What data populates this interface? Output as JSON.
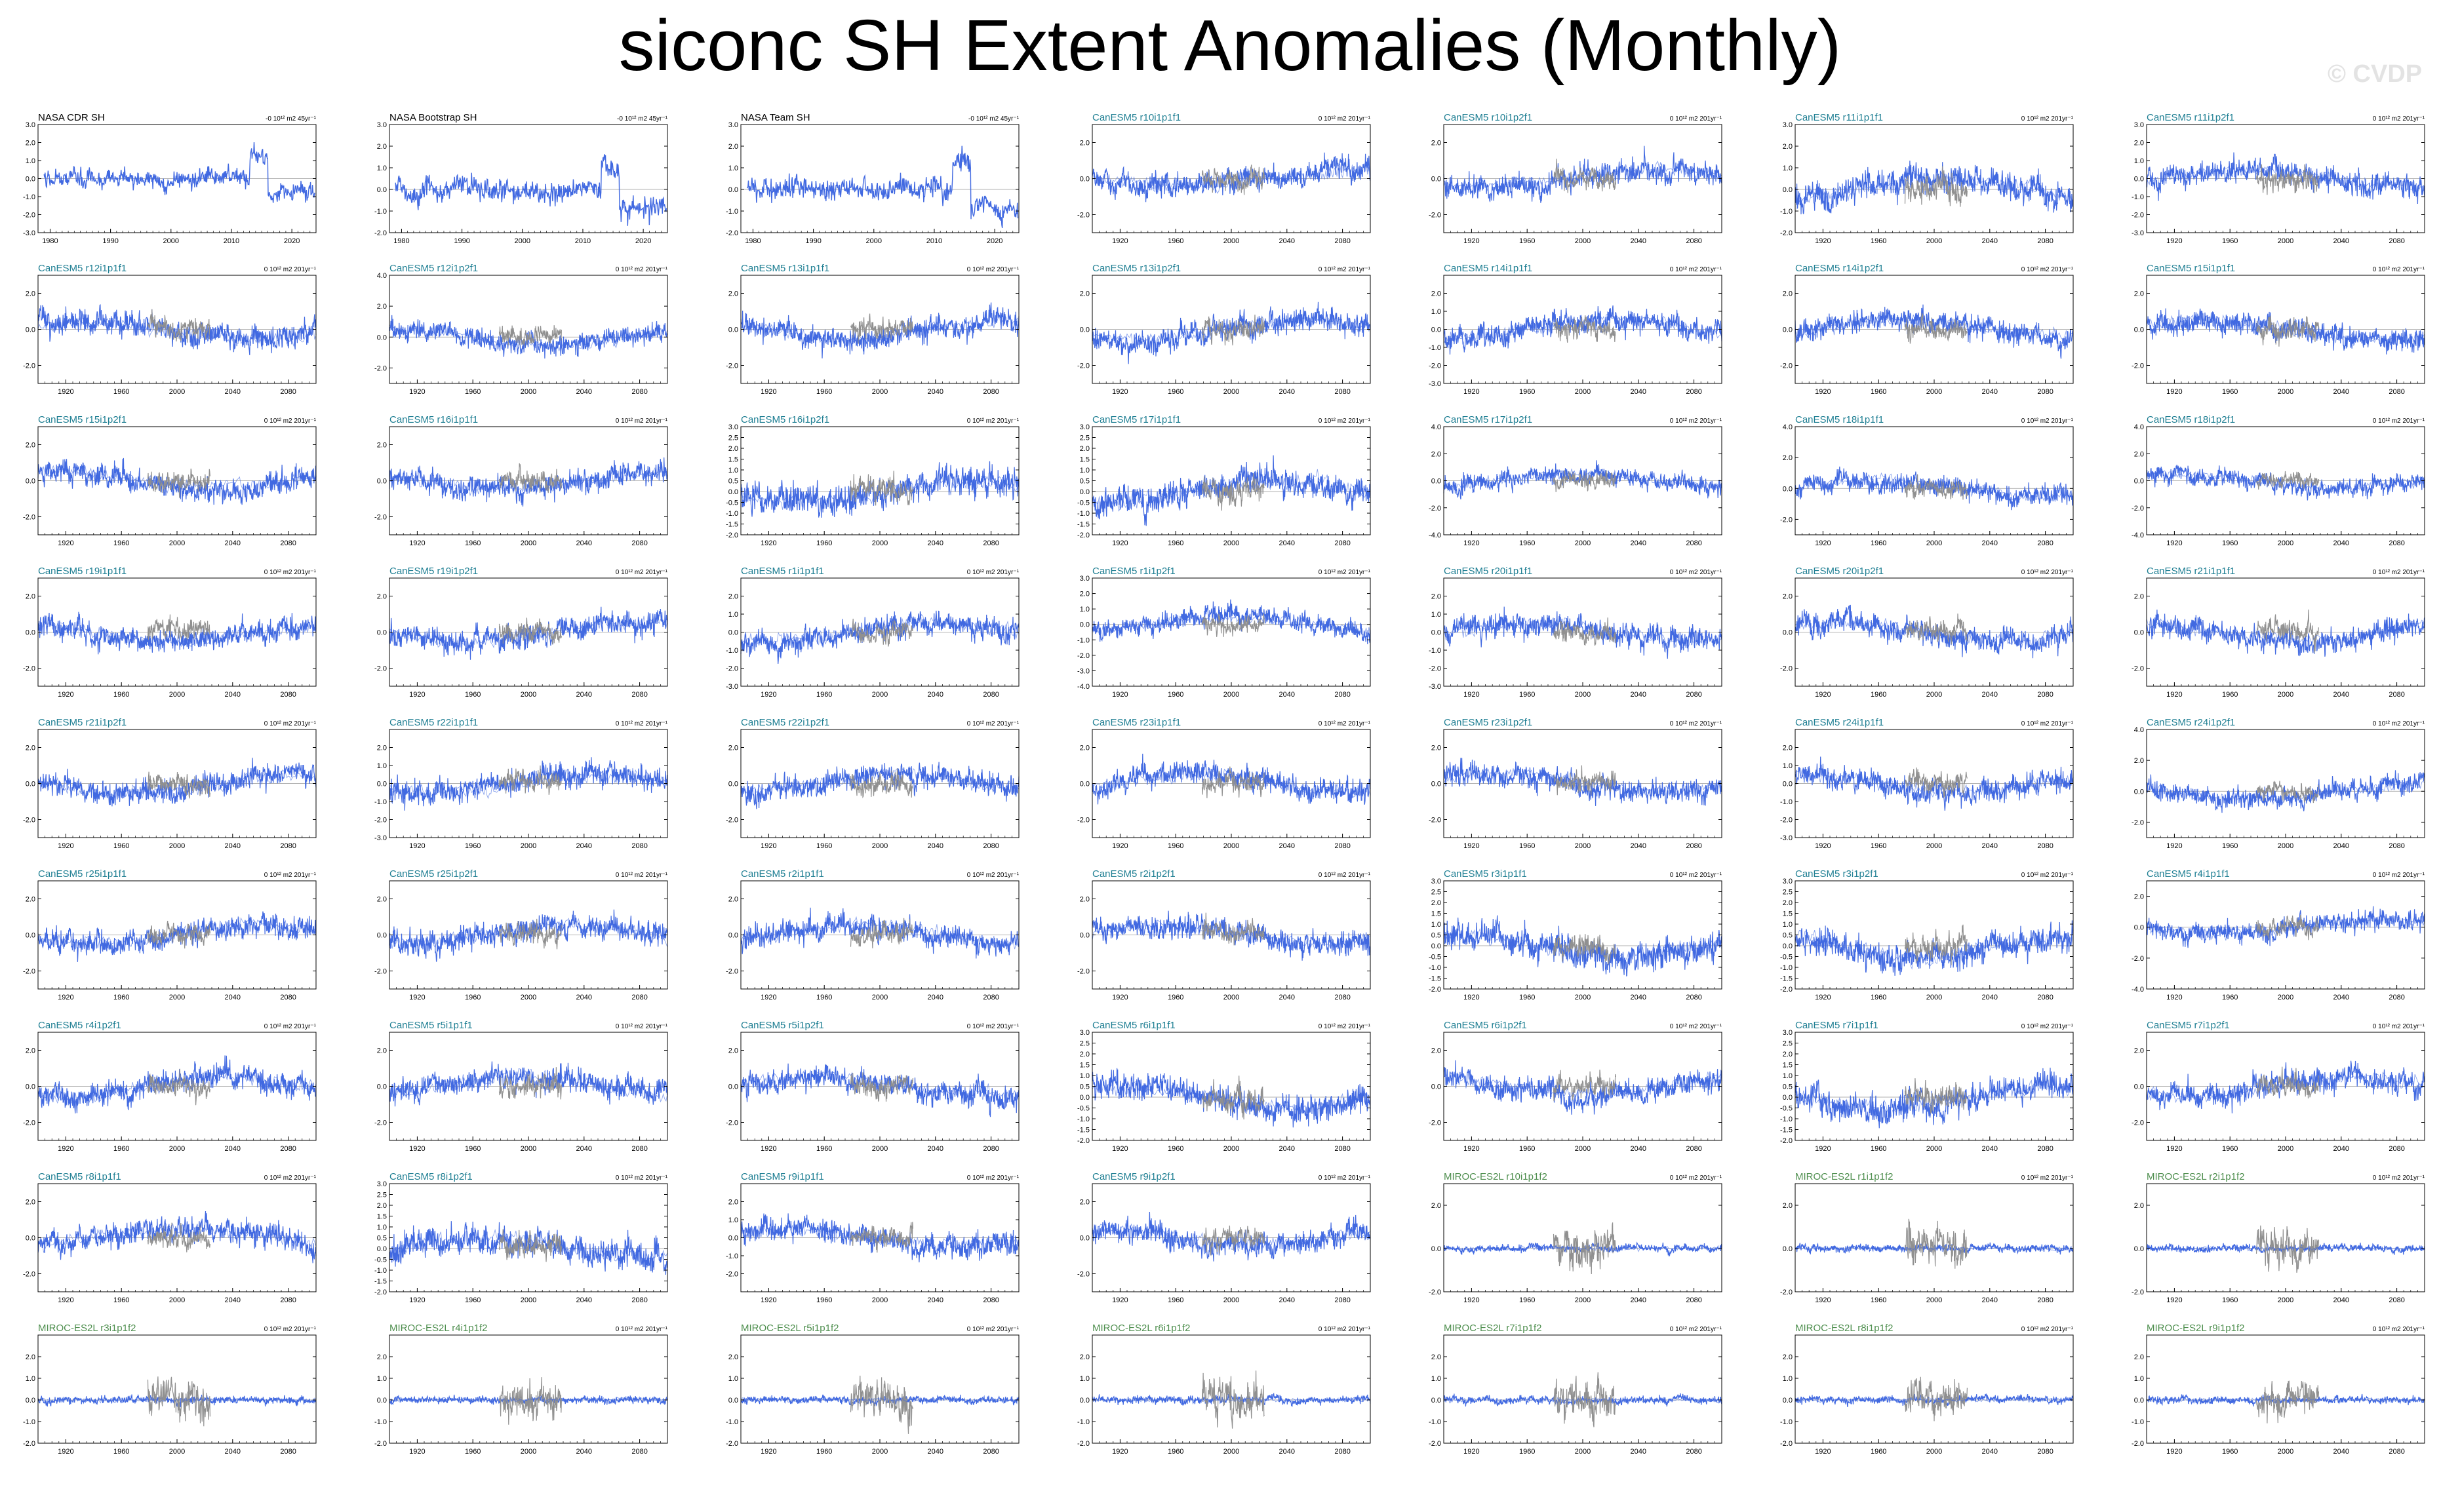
{
  "title": "siconc SH Extent Anomalies (Monthly)",
  "watermark": "© CVDP",
  "colors": {
    "model": "#4169e1",
    "obs": "#909090",
    "obs_title": "#000000",
    "canesm_title": "#1f7f93",
    "miroc_title": "#4f8f4f",
    "axis": "#000000"
  },
  "chart_data": [
    {
      "type": "line",
      "title": "NASA CDR SH",
      "trend": "-0 10^12 m2 45yr^-1",
      "group": "obs",
      "xlim": [
        1978,
        2024
      ],
      "xticks": [
        1980,
        1990,
        2000,
        2010,
        2020
      ],
      "ylim": [
        -3,
        3
      ],
      "yticks": [
        -3.0,
        -2.0,
        -1.0,
        0.0,
        1.0,
        2.0,
        3.0
      ]
    },
    {
      "type": "line",
      "title": "NASA Bootstrap SH",
      "trend": "-0 10^12 m2 45yr^-1",
      "group": "obs",
      "xlim": [
        1978,
        2024
      ],
      "xticks": [
        1980,
        1990,
        2000,
        2010,
        2020
      ],
      "ylim": [
        -2,
        3
      ],
      "yticks": [
        -2.0,
        -1.0,
        0.0,
        1.0,
        2.0,
        3.0
      ]
    },
    {
      "type": "line",
      "title": "NASA Team SH",
      "trend": "-0 10^12 m2 45yr^-1",
      "group": "obs",
      "xlim": [
        1978,
        2024
      ],
      "xticks": [
        1980,
        1990,
        2000,
        2010,
        2020
      ],
      "ylim": [
        -2,
        3
      ],
      "yticks": [
        -2.0,
        -1.0,
        0.0,
        1.0,
        2.0,
        3.0
      ]
    },
    {
      "type": "line",
      "title": "CanESM5 r10i1p1f1",
      "trend": "0 10^12 m2 201yr^-1",
      "group": "canesm",
      "ylim": [
        -3,
        3
      ],
      "yticks": [
        -2.0,
        0.0,
        2.0
      ]
    },
    {
      "type": "line",
      "title": "CanESM5 r10i1p2f1",
      "trend": "0 10^12 m2 201yr^-1",
      "group": "canesm",
      "ylim": [
        -3,
        3
      ],
      "yticks": [
        -2.0,
        0.0,
        2.0
      ]
    },
    {
      "type": "line",
      "title": "CanESM5 r11i1p1f1",
      "trend": "0 10^12 m2 201yr^-1",
      "group": "canesm",
      "ylim": [
        -2,
        3
      ],
      "yticks": [
        -2.0,
        -1.0,
        0.0,
        1.0,
        2.0,
        3.0
      ]
    },
    {
      "type": "line",
      "title": "CanESM5 r11i1p2f1",
      "trend": "0 10^12 m2 201yr^-1",
      "group": "canesm",
      "ylim": [
        -3,
        3
      ],
      "yticks": [
        -3.0,
        -2.0,
        -1.0,
        0.0,
        1.0,
        2.0,
        3.0
      ]
    },
    {
      "type": "line",
      "title": "CanESM5 r12i1p1f1",
      "trend": "0 10^12 m2 201yr^-1",
      "group": "canesm",
      "ylim": [
        -3,
        3
      ],
      "yticks": [
        -2.0,
        0.0,
        2.0
      ]
    },
    {
      "type": "line",
      "title": "CanESM5 r12i1p2f1",
      "trend": "0 10^12 m2 201yr^-1",
      "group": "canesm",
      "ylim": [
        -3,
        4
      ],
      "yticks": [
        -2.0,
        0.0,
        2.0,
        4.0
      ]
    },
    {
      "type": "line",
      "title": "CanESM5 r13i1p1f1",
      "trend": "0 10^12 m2 201yr^-1",
      "group": "canesm",
      "ylim": [
        -3,
        3
      ],
      "yticks": [
        -2.0,
        0.0,
        2.0
      ]
    },
    {
      "type": "line",
      "title": "CanESM5 r13i1p2f1",
      "trend": "0 10^12 m2 201yr^-1",
      "group": "canesm",
      "ylim": [
        -3,
        3
      ],
      "yticks": [
        -2.0,
        0.0,
        2.0
      ]
    },
    {
      "type": "line",
      "title": "CanESM5 r14i1p1f1",
      "trend": "0 10^12 m2 201yr^-1",
      "group": "canesm",
      "ylim": [
        -3,
        3
      ],
      "yticks": [
        -3.0,
        -2.0,
        -1.0,
        0.0,
        1.0,
        2.0
      ]
    },
    {
      "type": "line",
      "title": "CanESM5 r14i1p2f1",
      "trend": "0 10^12 m2 201yr^-1",
      "group": "canesm",
      "ylim": [
        -3,
        3
      ],
      "yticks": [
        -2.0,
        0.0,
        2.0
      ]
    },
    {
      "type": "line",
      "title": "CanESM5 r15i1p1f1",
      "trend": "0 10^12 m2 201yr^-1",
      "group": "canesm",
      "ylim": [
        -3,
        3
      ],
      "yticks": [
        -2.0,
        0.0,
        2.0
      ]
    },
    {
      "type": "line",
      "title": "CanESM5 r15i1p2f1",
      "trend": "0 10^12 m2 201yr^-1",
      "group": "canesm",
      "ylim": [
        -3,
        3
      ],
      "yticks": [
        -2.0,
        0.0,
        2.0
      ]
    },
    {
      "type": "line",
      "title": "CanESM5 r16i1p1f1",
      "trend": "0 10^12 m2 201yr^-1",
      "group": "canesm",
      "ylim": [
        -3,
        3
      ],
      "yticks": [
        -2.0,
        0.0,
        2.0
      ]
    },
    {
      "type": "line",
      "title": "CanESM5 r16i1p2f1",
      "trend": "0 10^12 m2 201yr^-1",
      "group": "canesm",
      "ylim": [
        -2,
        3
      ],
      "yticks": [
        -2.0,
        -1.5,
        -1.0,
        -0.5,
        0.0,
        0.5,
        1.0,
        1.5,
        2.0,
        2.5,
        3.0
      ]
    },
    {
      "type": "line",
      "title": "CanESM5 r17i1p1f1",
      "trend": "0 10^12 m2 201yr^-1",
      "group": "canesm",
      "ylim": [
        -2,
        3
      ],
      "yticks": [
        -2.0,
        -1.5,
        -1.0,
        -0.5,
        0.0,
        0.5,
        1.0,
        1.5,
        2.0,
        2.5,
        3.0
      ]
    },
    {
      "type": "line",
      "title": "CanESM5 r17i1p2f1",
      "trend": "0 10^12 m2 201yr^-1",
      "group": "canesm",
      "ylim": [
        -4,
        4
      ],
      "yticks": [
        -4.0,
        -2.0,
        0.0,
        2.0,
        4.0
      ]
    },
    {
      "type": "line",
      "title": "CanESM5 r18i1p1f1",
      "trend": "0 10^12 m2 201yr^-1",
      "group": "canesm",
      "ylim": [
        -3,
        4
      ],
      "yticks": [
        -2.0,
        0.0,
        2.0,
        4.0
      ]
    },
    {
      "type": "line",
      "title": "CanESM5 r18i1p2f1",
      "trend": "0 10^12 m2 201yr^-1",
      "group": "canesm",
      "ylim": [
        -4,
        4
      ],
      "yticks": [
        -4.0,
        -2.0,
        0.0,
        2.0,
        4.0
      ]
    },
    {
      "type": "line",
      "title": "CanESM5 r19i1p1f1",
      "trend": "0 10^12 m2 201yr^-1",
      "group": "canesm",
      "ylim": [
        -3,
        3
      ],
      "yticks": [
        -2.0,
        0.0,
        2.0
      ]
    },
    {
      "type": "line",
      "title": "CanESM5 r19i1p2f1",
      "trend": "0 10^12 m2 201yr^-1",
      "group": "canesm",
      "ylim": [
        -3,
        3
      ],
      "yticks": [
        -2.0,
        0.0,
        2.0
      ]
    },
    {
      "type": "line",
      "title": "CanESM5 r1i1p1f1",
      "trend": "0 10^12 m2 201yr^-1",
      "group": "canesm",
      "ylim": [
        -3,
        3
      ],
      "yticks": [
        -3.0,
        -2.0,
        -1.0,
        0.0,
        1.0,
        2.0
      ]
    },
    {
      "type": "line",
      "title": "CanESM5 r1i1p2f1",
      "trend": "0 10^12 m2 201yr^-1",
      "group": "canesm",
      "ylim": [
        -4,
        3
      ],
      "yticks": [
        -4.0,
        -3.0,
        -2.0,
        -1.0,
        0.0,
        1.0,
        2.0,
        3.0
      ]
    },
    {
      "type": "line",
      "title": "CanESM5 r20i1p1f1",
      "trend": "0 10^12 m2 201yr^-1",
      "group": "canesm",
      "ylim": [
        -3,
        3
      ],
      "yticks": [
        -3.0,
        -2.0,
        -1.0,
        0.0,
        1.0,
        2.0
      ]
    },
    {
      "type": "line",
      "title": "CanESM5 r20i1p2f1",
      "trend": "0 10^12 m2 201yr^-1",
      "group": "canesm",
      "ylim": [
        -3,
        3
      ],
      "yticks": [
        -2.0,
        0.0,
        2.0
      ]
    },
    {
      "type": "line",
      "title": "CanESM5 r21i1p1f1",
      "trend": "0 10^12 m2 201yr^-1",
      "group": "canesm",
      "ylim": [
        -3,
        3
      ],
      "yticks": [
        -2.0,
        0.0,
        2.0
      ]
    },
    {
      "type": "line",
      "title": "CanESM5 r21i1p2f1",
      "trend": "0 10^12 m2 201yr^-1",
      "group": "canesm",
      "ylim": [
        -3,
        3
      ],
      "yticks": [
        -2.0,
        0.0,
        2.0
      ]
    },
    {
      "type": "line",
      "title": "CanESM5 r22i1p1f1",
      "trend": "0 10^12 m2 201yr^-1",
      "group": "canesm",
      "ylim": [
        -3,
        3
      ],
      "yticks": [
        -3.0,
        -2.0,
        -1.0,
        0.0,
        1.0,
        2.0
      ]
    },
    {
      "type": "line",
      "title": "CanESM5 r22i1p2f1",
      "trend": "0 10^12 m2 201yr^-1",
      "group": "canesm",
      "ylim": [
        -3,
        3
      ],
      "yticks": [
        -2.0,
        0.0,
        2.0
      ]
    },
    {
      "type": "line",
      "title": "CanESM5 r23i1p1f1",
      "trend": "0 10^12 m2 201yr^-1",
      "group": "canesm",
      "ylim": [
        -3,
        3
      ],
      "yticks": [
        -2.0,
        0.0,
        2.0
      ]
    },
    {
      "type": "line",
      "title": "CanESM5 r23i1p2f1",
      "trend": "0 10^12 m2 201yr^-1",
      "group": "canesm",
      "ylim": [
        -3,
        3
      ],
      "yticks": [
        -2.0,
        0.0,
        2.0
      ]
    },
    {
      "type": "line",
      "title": "CanESM5 r24i1p1f1",
      "trend": "0 10^12 m2 201yr^-1",
      "group": "canesm",
      "ylim": [
        -3,
        3
      ],
      "yticks": [
        -3.0,
        -2.0,
        -1.0,
        0.0,
        1.0,
        2.0
      ]
    },
    {
      "type": "line",
      "title": "CanESM5 r24i1p2f1",
      "trend": "0 10^12 m2 201yr^-1",
      "group": "canesm",
      "ylim": [
        -3,
        4
      ],
      "yticks": [
        -2.0,
        0.0,
        2.0,
        4.0
      ]
    },
    {
      "type": "line",
      "title": "CanESM5 r25i1p1f1",
      "trend": "0 10^12 m2 201yr^-1",
      "group": "canesm",
      "ylim": [
        -3,
        3
      ],
      "yticks": [
        -2.0,
        0.0,
        2.0
      ]
    },
    {
      "type": "line",
      "title": "CanESM5 r25i1p2f1",
      "trend": "0 10^12 m2 201yr^-1",
      "group": "canesm",
      "ylim": [
        -3,
        3
      ],
      "yticks": [
        -2.0,
        0.0,
        2.0
      ]
    },
    {
      "type": "line",
      "title": "CanESM5 r2i1p1f1",
      "trend": "0 10^12 m2 201yr^-1",
      "group": "canesm",
      "ylim": [
        -3,
        3
      ],
      "yticks": [
        -2.0,
        0.0,
        2.0
      ]
    },
    {
      "type": "line",
      "title": "CanESM5 r2i1p2f1",
      "trend": "0 10^12 m2 201yr^-1",
      "group": "canesm",
      "ylim": [
        -3,
        3
      ],
      "yticks": [
        -2.0,
        0.0,
        2.0
      ]
    },
    {
      "type": "line",
      "title": "CanESM5 r3i1p1f1",
      "trend": "0 10^12 m2 201yr^-1",
      "group": "canesm",
      "ylim": [
        -2,
        3
      ],
      "yticks": [
        -2.0,
        -1.5,
        -1.0,
        -0.5,
        0.0,
        0.5,
        1.0,
        1.5,
        2.0,
        2.5,
        3.0
      ]
    },
    {
      "type": "line",
      "title": "CanESM5 r3i1p2f1",
      "trend": "0 10^12 m2 201yr^-1",
      "group": "canesm",
      "ylim": [
        -2,
        3
      ],
      "yticks": [
        -2.0,
        -1.5,
        -1.0,
        -0.5,
        0.0,
        0.5,
        1.0,
        1.5,
        2.0,
        2.5,
        3.0
      ]
    },
    {
      "type": "line",
      "title": "CanESM5 r4i1p1f1",
      "trend": "0 10^12 m2 201yr^-1",
      "group": "canesm",
      "ylim": [
        -4,
        3
      ],
      "yticks": [
        -4.0,
        -2.0,
        0.0,
        2.0
      ]
    },
    {
      "type": "line",
      "title": "CanESM5 r4i1p2f1",
      "trend": "0 10^12 m2 201yr^-1",
      "group": "canesm",
      "ylim": [
        -3,
        3
      ],
      "yticks": [
        -2.0,
        0.0,
        2.0
      ]
    },
    {
      "type": "line",
      "title": "CanESM5 r5i1p1f1",
      "trend": "0 10^12 m2 201yr^-1",
      "group": "canesm",
      "ylim": [
        -3,
        3
      ],
      "yticks": [
        -2.0,
        0.0,
        2.0
      ]
    },
    {
      "type": "line",
      "title": "CanESM5 r5i1p2f1",
      "trend": "0 10^12 m2 201yr^-1",
      "group": "canesm",
      "ylim": [
        -3,
        3
      ],
      "yticks": [
        -2.0,
        0.0,
        2.0
      ]
    },
    {
      "type": "line",
      "title": "CanESM5 r6i1p1f1",
      "trend": "0 10^12 m2 201yr^-1",
      "group": "canesm",
      "ylim": [
        -2,
        3
      ],
      "yticks": [
        -2.0,
        -1.5,
        -1.0,
        -0.5,
        0.0,
        0.5,
        1.0,
        1.5,
        2.0,
        2.5,
        3.0
      ]
    },
    {
      "type": "line",
      "title": "CanESM5 r6i1p2f1",
      "trend": "0 10^12 m2 201yr^-1",
      "group": "canesm",
      "ylim": [
        -3,
        3
      ],
      "yticks": [
        -2.0,
        0.0,
        2.0
      ]
    },
    {
      "type": "line",
      "title": "CanESM5 r7i1p1f1",
      "trend": "0 10^12 m2 201yr^-1",
      "group": "canesm",
      "ylim": [
        -2,
        3
      ],
      "yticks": [
        -2.0,
        -1.5,
        -1.0,
        -0.5,
        0.0,
        0.5,
        1.0,
        1.5,
        2.0,
        2.5,
        3.0
      ]
    },
    {
      "type": "line",
      "title": "CanESM5 r7i1p2f1",
      "trend": "0 10^12 m2 201yr^-1",
      "group": "canesm",
      "ylim": [
        -3,
        3
      ],
      "yticks": [
        -2.0,
        0.0,
        2.0
      ]
    },
    {
      "type": "line",
      "title": "CanESM5 r8i1p1f1",
      "trend": "0 10^12 m2 201yr^-1",
      "group": "canesm",
      "ylim": [
        -3,
        3
      ],
      "yticks": [
        -2.0,
        0.0,
        2.0
      ]
    },
    {
      "type": "line",
      "title": "CanESM5 r8i1p2f1",
      "trend": "0 10^12 m2 201yr^-1",
      "group": "canesm",
      "ylim": [
        -2,
        3
      ],
      "yticks": [
        -2.0,
        -1.5,
        -1.0,
        -0.5,
        0.0,
        0.5,
        1.0,
        1.5,
        2.0,
        2.5,
        3.0
      ]
    },
    {
      "type": "line",
      "title": "CanESM5 r9i1p1f1",
      "trend": "0 10^12 m2 201yr^-1",
      "group": "canesm",
      "ylim": [
        -3,
        3
      ],
      "yticks": [
        -2.0,
        -1.0,
        0.0,
        1.0,
        2.0
      ]
    },
    {
      "type": "line",
      "title": "CanESM5 r9i1p2f1",
      "trend": "0 10^12 m2 201yr^-1",
      "group": "canesm",
      "ylim": [
        -3,
        3
      ],
      "yticks": [
        -2.0,
        0.0,
        2.0
      ]
    },
    {
      "type": "line",
      "title": "MIROC-ES2L r10i1p1f2",
      "trend": "0 10^12 m2 201yr^-1",
      "group": "miroc",
      "ylim": [
        -2,
        3
      ],
      "yticks": [
        -2.0,
        0.0,
        2.0
      ]
    },
    {
      "type": "line",
      "title": "MIROC-ES2L r1i1p1f2",
      "trend": "0 10^12 m2 201yr^-1",
      "group": "miroc",
      "ylim": [
        -2,
        3
      ],
      "yticks": [
        -2.0,
        0.0,
        2.0
      ]
    },
    {
      "type": "line",
      "title": "MIROC-ES2L r2i1p1f2",
      "trend": "0 10^12 m2 201yr^-1",
      "group": "miroc",
      "ylim": [
        -2,
        3
      ],
      "yticks": [
        -2.0,
        0.0,
        2.0
      ]
    },
    {
      "type": "line",
      "title": "MIROC-ES2L r3i1p1f2",
      "trend": "0 10^12 m2 201yr^-1",
      "group": "miroc",
      "ylim": [
        -2,
        3
      ],
      "yticks": [
        -2.0,
        -1.0,
        0.0,
        1.0,
        2.0
      ]
    },
    {
      "type": "line",
      "title": "MIROC-ES2L r4i1p1f2",
      "trend": "0 10^12 m2 201yr^-1",
      "group": "miroc",
      "ylim": [
        -2,
        3
      ],
      "yticks": [
        -2.0,
        -1.0,
        0.0,
        1.0,
        2.0
      ]
    },
    {
      "type": "line",
      "title": "MIROC-ES2L r5i1p1f2",
      "trend": "0 10^12 m2 201yr^-1",
      "group": "miroc",
      "ylim": [
        -2,
        3
      ],
      "yticks": [
        -2.0,
        -1.0,
        0.0,
        1.0,
        2.0
      ]
    },
    {
      "type": "line",
      "title": "MIROC-ES2L r6i1p1f2",
      "trend": "0 10^12 m2 201yr^-1",
      "group": "miroc",
      "ylim": [
        -2,
        3
      ],
      "yticks": [
        -2.0,
        -1.0,
        0.0,
        1.0,
        2.0
      ]
    },
    {
      "type": "line",
      "title": "MIROC-ES2L r7i1p1f2",
      "trend": "0 10^12 m2 201yr^-1",
      "group": "miroc",
      "ylim": [
        -2,
        3
      ],
      "yticks": [
        -2.0,
        -1.0,
        0.0,
        1.0,
        2.0
      ]
    },
    {
      "type": "line",
      "title": "MIROC-ES2L r8i1p1f2",
      "trend": "0 10^12 m2 201yr^-1",
      "group": "miroc",
      "ylim": [
        -2,
        3
      ],
      "yticks": [
        -2.0,
        -1.0,
        0.0,
        1.0,
        2.0
      ]
    },
    {
      "type": "line",
      "title": "MIROC-ES2L r9i1p1f2",
      "trend": "0 10^12 m2 201yr^-1",
      "group": "miroc",
      "ylim": [
        -2,
        3
      ],
      "yticks": [
        -2.0,
        -1.0,
        0.0,
        1.0,
        2.0
      ]
    }
  ],
  "model_xlim": [
    1900,
    2100
  ],
  "model_xticks": [
    1920,
    1960,
    2000,
    2040,
    2080
  ],
  "obs_overlay_xlim": [
    1978,
    2024
  ]
}
